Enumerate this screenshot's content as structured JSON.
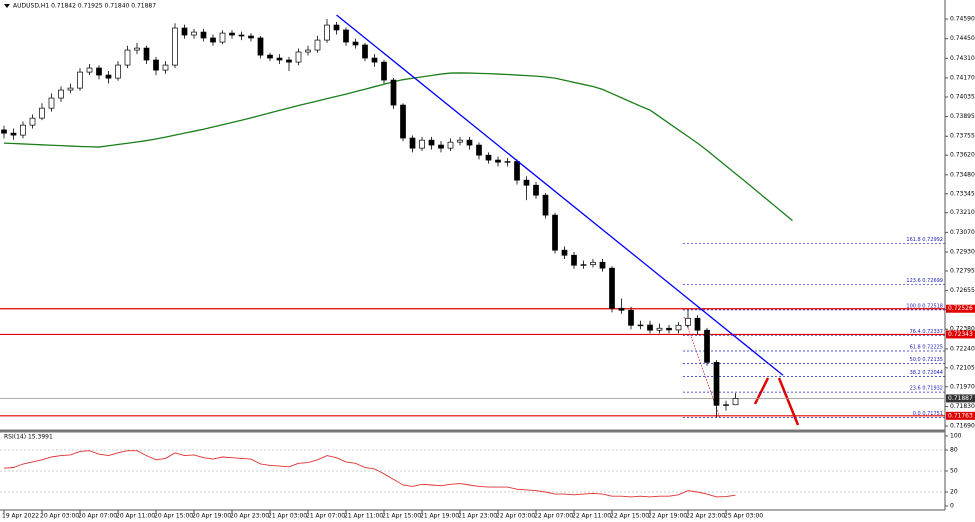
{
  "chart_data": {
    "type": "candlestick",
    "title": "AUDUSD,H1  0.71842 0.71925 0.71840 0.71887",
    "categories": [
      "19 Apr 2022",
      null,
      null,
      null,
      "20 Apr 03:00",
      null,
      null,
      null,
      "20 Apr 07:00",
      null,
      null,
      null,
      "20 Apr 11:00",
      null,
      null,
      null,
      "20 Apr 15:00",
      null,
      null,
      null,
      "20 Apr 19:00",
      null,
      null,
      null,
      "20 Apr 23:00",
      null,
      null,
      null,
      "21 Apr 03:00",
      null,
      null,
      null,
      "21 Apr 07:00",
      null,
      null,
      null,
      "21 Apr 11:00",
      null,
      null,
      null,
      "21 Apr 15:00",
      null,
      null,
      null,
      "21 Apr 19:00",
      null,
      null,
      null,
      "21 Apr 23:00",
      null,
      null,
      null,
      "22 Apr 03:00",
      null,
      null,
      null,
      "22 Apr 07:00",
      null,
      null,
      null,
      "22 Apr 11:00",
      null,
      null,
      null,
      "22 Apr 15:00",
      null,
      null,
      null,
      "22 Apr 19:00",
      null,
      null,
      null,
      "22 Apr 23:00",
      null,
      null,
      null,
      "25 Apr 03:00",
      null,
      null,
      null,
      null,
      null,
      null,
      null
    ],
    "open": [
      0.738,
      0.73777,
      0.73763,
      0.73834,
      0.73884,
      0.73955,
      0.74027,
      0.74084,
      0.74098,
      0.74212,
      0.74241,
      0.74191,
      0.74169,
      0.74262,
      0.74369,
      0.74383,
      0.74298,
      0.74226,
      0.74262,
      0.74526,
      0.74476,
      0.74497,
      0.74455,
      0.74426,
      0.7449,
      0.74476,
      0.74469,
      0.74455,
      0.74333,
      0.74312,
      0.74298,
      0.74283,
      0.74355,
      0.74369,
      0.7444,
      0.74547,
      0.74512,
      0.74426,
      0.74405,
      0.74312,
      0.74283,
      0.74155,
      0.73977,
      0.73742,
      0.7367,
      0.73727,
      0.73692,
      0.7367,
      0.73713,
      0.73727,
      0.73692,
      0.7362,
      0.73585,
      0.7357,
      0.73575,
      0.73442,
      0.73406,
      0.73335,
      0.73193,
      0.72943,
      0.72907,
      0.72836,
      0.7284,
      0.72857,
      0.72815,
      0.72529,
      0.72515,
      0.72408,
      0.7241,
      0.72373,
      0.72387,
      0.72375,
      0.72408,
      0.72458,
      0.72373,
      0.72144,
      0.71838,
      0.71842,
      null,
      null,
      null,
      null,
      null,
      null
    ],
    "high": [
      0.7383,
      0.7381,
      0.7386,
      0.7391,
      0.7399,
      0.7406,
      0.7411,
      0.7413,
      0.7424,
      0.7427,
      0.7426,
      0.7422,
      0.7429,
      0.744,
      0.7442,
      0.744,
      0.7432,
      0.7429,
      0.7456,
      0.7455,
      0.7452,
      0.7452,
      0.7448,
      0.7451,
      0.7451,
      0.745,
      0.7449,
      0.7447,
      0.7435,
      0.7434,
      0.7432,
      0.7438,
      0.744,
      0.7447,
      0.7459,
      0.7457,
      0.7453,
      0.7445,
      0.7442,
      0.7434,
      0.743,
      0.7417,
      0.7399,
      0.7376,
      0.7375,
      0.7375,
      0.7372,
      0.7374,
      0.7375,
      0.7375,
      0.7371,
      0.7364,
      0.7361,
      0.736,
      0.7359,
      0.7347,
      0.7343,
      0.7335,
      0.7321,
      0.7297,
      0.7293,
      0.7287,
      0.7288,
      0.7288,
      0.7283,
      0.726,
      0.7254,
      0.7244,
      0.7244,
      0.7242,
      0.7241,
      0.7243,
      0.72518,
      0.7248,
      0.7239,
      0.7216,
      0.7187,
      0.71925,
      null,
      null,
      null,
      null,
      null,
      null
    ],
    "low": [
      0.7374,
      0.7373,
      0.7374,
      0.7381,
      0.7387,
      0.7393,
      0.74,
      0.7406,
      0.7408,
      0.7419,
      0.7416,
      0.7413,
      0.7415,
      0.7424,
      0.7434,
      0.7427,
      0.7419,
      0.742,
      0.7424,
      0.7445,
      0.7445,
      0.7443,
      0.744,
      0.7441,
      0.7445,
      0.7444,
      0.7443,
      0.7431,
      0.7429,
      0.7427,
      0.7422,
      0.7426,
      0.7433,
      0.7435,
      0.7442,
      0.7448,
      0.744,
      0.7438,
      0.7429,
      0.7425,
      0.7413,
      0.7395,
      0.7372,
      0.7364,
      0.7365,
      0.7366,
      0.7364,
      0.7365,
      0.7369,
      0.7366,
      0.7359,
      0.7356,
      0.7354,
      0.7354,
      0.7341,
      0.733,
      0.7331,
      0.7317,
      0.7292,
      0.7288,
      0.7281,
      0.7281,
      0.7282,
      0.7279,
      0.725,
      0.7249,
      0.7238,
      0.7238,
      0.7235,
      0.7235,
      0.7235,
      0.7235,
      0.7239,
      0.7234,
      0.7212,
      0.71751,
      0.718,
      0.7184,
      null,
      null,
      null,
      null,
      null,
      null
    ],
    "close": [
      0.73777,
      0.73763,
      0.73834,
      0.73884,
      0.73955,
      0.74027,
      0.74084,
      0.74098,
      0.74212,
      0.74241,
      0.74191,
      0.74169,
      0.74262,
      0.74369,
      0.74383,
      0.74298,
      0.74226,
      0.74262,
      0.74526,
      0.74476,
      0.74497,
      0.74455,
      0.74426,
      0.7449,
      0.74476,
      0.74469,
      0.74455,
      0.74333,
      0.74312,
      0.74298,
      0.74283,
      0.74355,
      0.74369,
      0.7444,
      0.74547,
      0.74512,
      0.74426,
      0.74405,
      0.74312,
      0.74283,
      0.74155,
      0.73977,
      0.73742,
      0.7367,
      0.73727,
      0.73692,
      0.7367,
      0.73713,
      0.73727,
      0.73692,
      0.7362,
      0.73585,
      0.7357,
      0.73575,
      0.73442,
      0.73406,
      0.73335,
      0.73193,
      0.72943,
      0.72907,
      0.72836,
      0.7284,
      0.72857,
      0.72815,
      0.72529,
      0.72515,
      0.72408,
      0.7241,
      0.72373,
      0.72387,
      0.72375,
      0.72408,
      0.72458,
      0.72373,
      0.72144,
      0.71838,
      0.71842,
      0.71887,
      null,
      null,
      null,
      null,
      null,
      null
    ],
    "ylim": [
      0.71662,
      0.7469
    ],
    "yticks": [
      {
        "value": 0.7459,
        "label": "0.74590"
      },
      {
        "value": 0.7445,
        "label": "0.74450"
      },
      {
        "value": 0.7431,
        "label": "0.74310"
      },
      {
        "value": 0.7417,
        "label": "0.74170"
      },
      0.74035,
      0.73895,
      0.73755,
      {
        "value": 0.7362,
        "label": "0.73620"
      },
      {
        "value": 0.7348,
        "label": "0.73480"
      },
      0.73345,
      {
        "value": 0.7321,
        "label": "0.73210"
      },
      {
        "value": 0.7307,
        "label": "0.73070"
      },
      {
        "value": 0.7293,
        "label": "0.72930"
      },
      0.72795,
      0.72655,
      {
        "value": 0.7252,
        "label": "0.72520"
      },
      {
        "value": 0.7238,
        "label": "0.72380"
      },
      {
        "value": 0.7224,
        "label": "0.72240"
      },
      0.72105,
      {
        "value": 0.7197,
        "label": "0.71970"
      },
      {
        "value": 0.7183,
        "label": "0.71830"
      },
      {
        "value": 0.7169,
        "label": "0.71690"
      }
    ],
    "ma": {
      "color": "#1a7f1a",
      "values": [
        0.73706,
        0.73703,
        0.737,
        0.73697,
        0.73694,
        0.73691,
        0.73688,
        0.73685,
        0.73682,
        0.7368,
        0.73678,
        0.73687,
        0.73696,
        0.73705,
        0.73714,
        0.73724,
        0.73735,
        0.73749,
        0.73763,
        0.73777,
        0.73791,
        0.73805,
        0.73821,
        0.73837,
        0.73853,
        0.73869,
        0.73886,
        0.73904,
        0.73921,
        0.73939,
        0.73956,
        0.73974,
        0.7399,
        0.74006,
        0.74023,
        0.74039,
        0.74055,
        0.74073,
        0.7409,
        0.74108,
        0.74125,
        0.74143,
        0.74158,
        0.74168,
        0.74178,
        0.74188,
        0.74198,
        0.74205,
        0.74206,
        0.74205,
        0.74203,
        0.74201,
        0.74198,
        0.74195,
        0.74191,
        0.74187,
        0.74183,
        0.74177,
        0.74169,
        0.74154,
        0.74139,
        0.74124,
        0.74109,
        0.74089,
        0.74059,
        0.74029,
        0.73999,
        0.73969,
        0.73941,
        0.73894,
        0.73847,
        0.738,
        0.73753,
        0.73706,
        0.73654,
        0.73599,
        0.73544,
        0.73489,
        0.73434,
        0.73378,
        0.73322,
        0.73266,
        0.7321,
        0.73154
      ]
    },
    "trendline": {
      "color": "#0000ff",
      "x": [
        35,
        82
      ],
      "values": [
        0.74619,
        0.72052
      ]
    },
    "hlines": [
      {
        "value": 0.72526,
        "color": "#e00000"
      },
      {
        "value": 0.72343,
        "color": "#e00000"
      },
      {
        "value": 0.71763,
        "color": "#e00000"
      },
      {
        "value": 0.71887,
        "color": "#a0a0a0"
      }
    ],
    "fib_color": "#2020c0",
    "fib_levels": [
      {
        "value": 0.72992,
        "label": "161.8 0.72992"
      },
      {
        "value": 0.72699,
        "label": "123.6 0.72699"
      },
      {
        "value": 0.72518,
        "label": "100.0 0.72518"
      },
      {
        "value": 0.72337,
        "label": "76.4 0.72337"
      },
      {
        "value": 0.72225,
        "label": "61.8 0.72225"
      },
      {
        "value": 0.72135,
        "label": "50.0 0.72135"
      },
      {
        "value": 0.72044,
        "label": "38.2 0.72044"
      },
      {
        "value": 0.71932,
        "label": "23.6 0.71932"
      },
      {
        "value": 0.71751,
        "label": "0.0 0.71751"
      }
    ],
    "rsi": {
      "title": "RSI(14) 15.3991",
      "color": "#e03030",
      "ylim": [
        0,
        100
      ],
      "yticks": [
        100,
        80,
        50,
        20,
        0
      ],
      "values": [
        54,
        55,
        60,
        63,
        66,
        70,
        72,
        73,
        78,
        79,
        74,
        72,
        76,
        79,
        79,
        72,
        66,
        68,
        76,
        72,
        73,
        69,
        67,
        70,
        69,
        68,
        67,
        60,
        58,
        57,
        56,
        61,
        62,
        66,
        72,
        69,
        63,
        61,
        55,
        53,
        46,
        38,
        30,
        28,
        31,
        30,
        29,
        31,
        32,
        30,
        28,
        27,
        27,
        27,
        24,
        23,
        22,
        20,
        17,
        17,
        16,
        17,
        18,
        17,
        14,
        14,
        13,
        14,
        13,
        14,
        14,
        16,
        22,
        20,
        17,
        13,
        13.5,
        15.3991,
        null,
        null,
        null,
        null,
        null,
        null
      ]
    }
  }
}
